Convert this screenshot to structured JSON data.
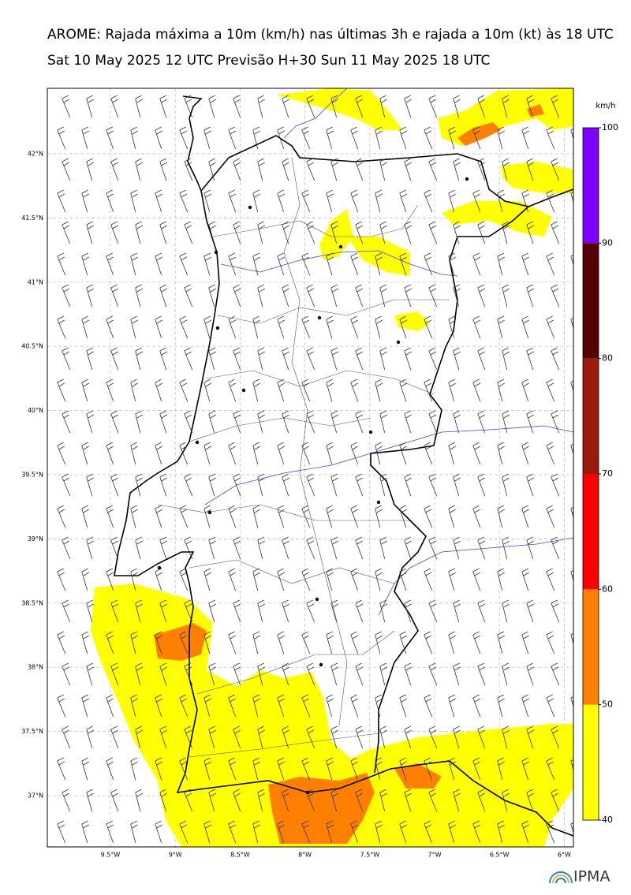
{
  "header": {
    "title": "AROME: Rajada máxima a 10m (km/h) nas últimas 3h e rajada a 10m (kt) às 18 UTC",
    "subtitle": "Sat 10 May 2025 12 UTC Previsão H+30 Sun 11 May 2025 18 UTC"
  },
  "map": {
    "lat_labels": [
      "42°N",
      "41.5°N",
      "41°N",
      "40.5°N",
      "40°N",
      "39.5°N",
      "39°N",
      "38.5°N",
      "38°N",
      "37.5°N",
      "37°N"
    ],
    "lon_labels": [
      "9.5°W",
      "9°W",
      "8.5°W",
      "8°W",
      "7.5°W",
      "7°W",
      "6.5°W",
      "6°W"
    ]
  },
  "colorbar": {
    "unit": "km/h",
    "ticks": [
      40,
      50,
      60,
      70,
      80,
      90,
      100
    ],
    "colors": [
      "#ffff00",
      "#ff8000",
      "#ff0000",
      "#9b1a0c",
      "#560000",
      "#8000ff"
    ]
  },
  "logo": "IPMA"
}
